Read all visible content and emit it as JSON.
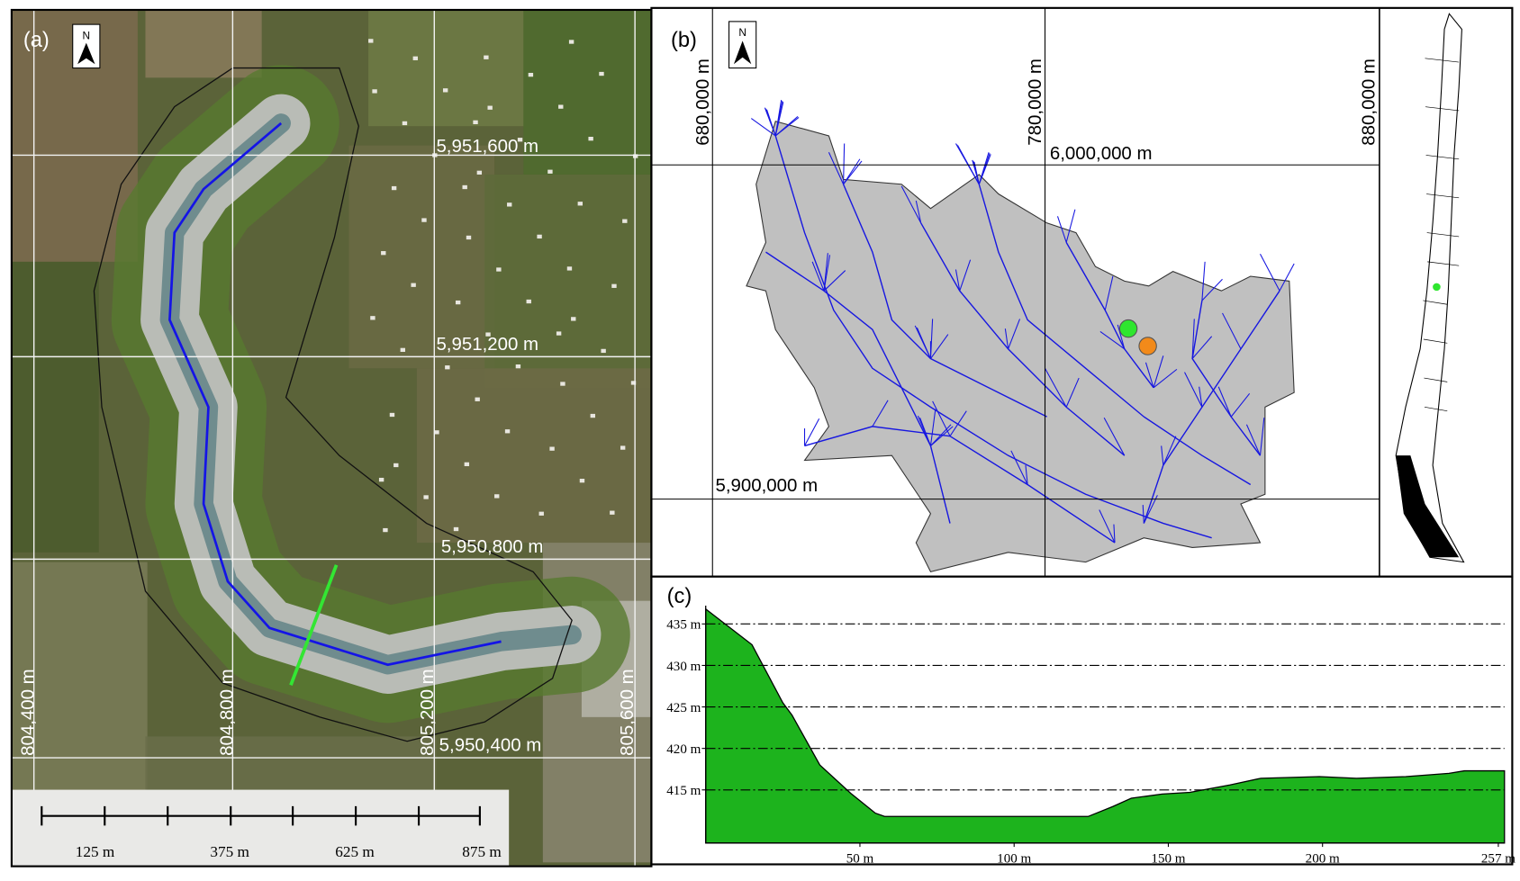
{
  "panels": {
    "a": {
      "label": "(a)",
      "north": "N",
      "northing_labels": [
        "5,951,600 m",
        "5,951,200 m",
        "5,950,800 m",
        "5,950,400 m"
      ],
      "easting_labels": [
        "804,400 m",
        "804,800 m",
        "805,200 m",
        "805,600 m"
      ],
      "scale_labels": [
        "125 m",
        "375 m",
        "625 m",
        "875 m"
      ]
    },
    "b": {
      "label": "(b)",
      "north": "N",
      "easting_labels": [
        "680,000 m",
        "780,000 m",
        "880,000 m"
      ],
      "northing_labels": [
        "6,000,000 m",
        "5,900,000 m"
      ]
    }
  },
  "chart_data": {
    "type": "area",
    "panel_label": "(c)",
    "x": [
      0,
      15,
      25,
      28,
      37,
      47,
      55,
      58,
      124,
      132,
      138,
      148,
      157,
      170,
      180,
      199,
      211,
      227,
      241,
      246,
      259
    ],
    "values": [
      436.8,
      432.5,
      425.5,
      424,
      418,
      414.6,
      412.2,
      411.8,
      411.8,
      413,
      414,
      414.5,
      414.7,
      415.6,
      416.4,
      416.6,
      416.4,
      416.6,
      417,
      417.3,
      417.3
    ],
    "color": "#1db31d",
    "xlim": [
      0,
      259
    ],
    "ylim": [
      408.6,
      437.2
    ],
    "xticks": [
      {
        "value": 50,
        "label": "50 m"
      },
      {
        "value": 100,
        "label": "100 m"
      },
      {
        "value": 150,
        "label": "150 m"
      },
      {
        "value": 200,
        "label": "200 m"
      },
      {
        "value": 257,
        "label": "257 m"
      }
    ],
    "yticks": [
      {
        "value": 415,
        "label": "415 m"
      },
      {
        "value": 420,
        "label": "420 m"
      },
      {
        "value": 425,
        "label": "425 m"
      },
      {
        "value": 430,
        "label": "430 m"
      },
      {
        "value": 435,
        "label": "435 m"
      }
    ],
    "grid": true
  }
}
